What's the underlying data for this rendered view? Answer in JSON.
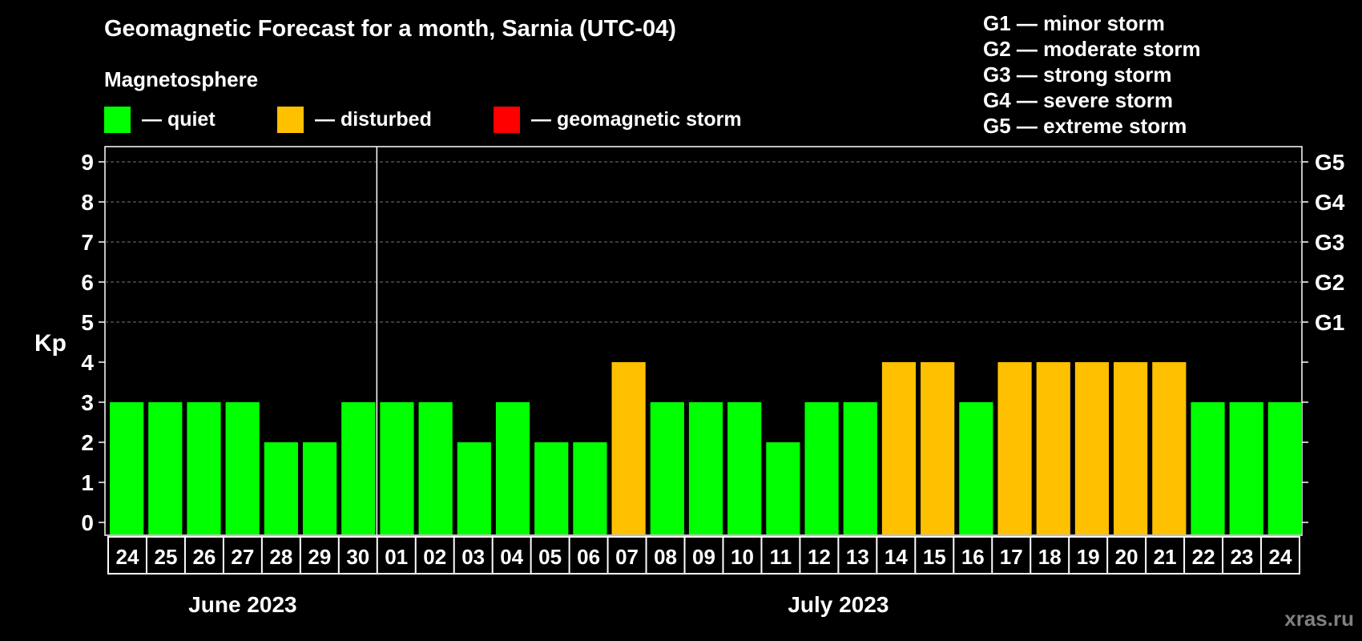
{
  "title": "Geomagnetic Forecast for a month, Sarnia (UTC-04)",
  "legend": {
    "heading": "Magnetosphere",
    "items": [
      {
        "label": "— quiet",
        "color": "#00ff00"
      },
      {
        "label": "— disturbed",
        "color": "#ffc000"
      },
      {
        "label": "— geomagnetic storm",
        "color": "#ff0000"
      }
    ]
  },
  "storm_scale": [
    {
      "level": "G1",
      "text": "G1 — minor storm"
    },
    {
      "level": "G2",
      "text": "G2 — moderate storm"
    },
    {
      "level": "G3",
      "text": "G3 — strong storm"
    },
    {
      "level": "G4",
      "text": "G4 — severe storm"
    },
    {
      "level": "G5",
      "text": "G5 — extreme storm"
    }
  ],
  "watermark": "xras.ru",
  "chart_data": {
    "type": "bar",
    "ylabel": "Kp",
    "ylim": [
      0,
      9
    ],
    "yticks": [
      "0",
      "1",
      "2",
      "3",
      "4",
      "5",
      "6",
      "7",
      "8",
      "9"
    ],
    "right_ticks": [
      {
        "value": 5,
        "label": "G1"
      },
      {
        "value": 6,
        "label": "G2"
      },
      {
        "value": 7,
        "label": "G3"
      },
      {
        "value": 8,
        "label": "G4"
      },
      {
        "value": 9,
        "label": "G5"
      }
    ],
    "categories": [
      "24",
      "25",
      "26",
      "27",
      "28",
      "29",
      "30",
      "01",
      "02",
      "03",
      "04",
      "05",
      "06",
      "07",
      "08",
      "09",
      "10",
      "11",
      "12",
      "13",
      "14",
      "15",
      "16",
      "17",
      "18",
      "19",
      "20",
      "21",
      "22",
      "23",
      "24"
    ],
    "values": [
      3,
      3,
      3,
      3,
      2,
      2,
      3,
      3,
      3,
      2,
      3,
      2,
      2,
      4,
      3,
      3,
      3,
      2,
      3,
      3,
      4,
      4,
      3,
      4,
      4,
      4,
      4,
      4,
      3,
      3,
      3
    ],
    "months": [
      {
        "label": "June 2023",
        "start_index": 0,
        "count": 7
      },
      {
        "label": "July 2023",
        "start_index": 7,
        "count": 24
      }
    ],
    "grid": "dashed horizontal",
    "legend_position": "top"
  }
}
